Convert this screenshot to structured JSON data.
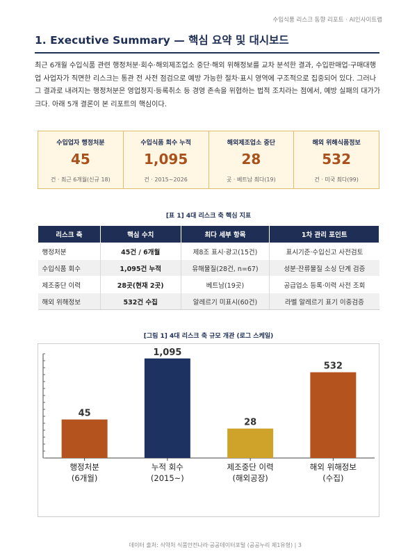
{
  "header": {
    "report_title": "수입식품 리스크 동향 리포트 · AI인사이트랩"
  },
  "section": {
    "title": "1. Executive Summary — 핵심 요약 및 대시보드"
  },
  "intro": "최근 6개월 수입식품 관련 행정처분·회수·해외제조업소 중단·해외 위해정보를 교차 분석한 결과, 수입판매업·구매대행업 사업자가 직면한 리스크는 통관 전 사전 점검으로 예방 가능한 절차·표시 영역에 구조적으로 집중되어 있다. 그러나 그 결과로 내려지는 행정처분은 영업정지·등록취소 등 경영 존속을 위협하는 법적 조치라는 점에서, 예방 실패의 대가가 크다. 아래 5개 결론이 본 리포트의 핵심이다.",
  "kpis": [
    {
      "label": "수입업자 행정처분",
      "value": "45",
      "sub": "건 · 최근 6개월(신규 18)"
    },
    {
      "label": "수입식품 회수 누적",
      "value": "1,095",
      "sub": "건 · 2015~2026"
    },
    {
      "label": "해외제조업소 중단",
      "value": "28",
      "sub": "곳 · 베트남 최다(19)"
    },
    {
      "label": "해외 위해식품정보",
      "value": "532",
      "sub": "건 · 미국 최다(99)"
    }
  ],
  "table": {
    "caption": "[표 1] 4대 리스크 축 핵심 지표",
    "headers": [
      "리스크 축",
      "핵심 수치",
      "최다 세부 항목",
      "1차 관리 포인트"
    ],
    "rows": [
      [
        "행정처분",
        "45건 / 6개월",
        "제8조 표시·광고(15건)",
        "표시기준·수입신고 사전검토"
      ],
      [
        "수입식품 회수",
        "1,095건 누적",
        "유해물질(28건, n=67)",
        "성분·잔류물질 소싱 단계 검증"
      ],
      [
        "제조중단 이력",
        "28곳(현재 2곳)",
        "베트남(19곳)",
        "공급업소 등록·이력 사전 조회"
      ],
      [
        "해외 위해정보",
        "532건 수집",
        "알레르기 미표시(60건)",
        "라벨 알레르기 표기 이중검증"
      ]
    ]
  },
  "figure": {
    "caption": "[그림 1] 4대 리스크 축 규모 개관 (로그 스케일)"
  },
  "chart_data": {
    "type": "bar",
    "title": "",
    "scale": "log",
    "grid": false,
    "categories": [
      [
        "행정처분",
        "(6개월)"
      ],
      [
        "누적 회수",
        "(2015~)"
      ],
      [
        "제조중단 이력",
        "(해외공장)"
      ],
      [
        "해외 위해정보",
        "(수집)"
      ]
    ],
    "values": [
      45,
      1095,
      28,
      532
    ],
    "labels": [
      "45",
      "1,095",
      "28",
      "532"
    ],
    "colors": [
      "#b5531f",
      "#1d3261",
      "#cfa32a",
      "#b5531f"
    ]
  },
  "footer": "데이터 출처: 식약처 식품안전나라·공공데이터포털 (공공누리 제1유형)  |  3"
}
